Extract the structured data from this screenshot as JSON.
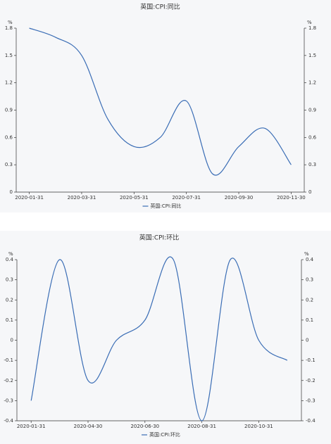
{
  "chart_data": [
    {
      "type": "line",
      "title": "英国:CPI:同比",
      "y_unit": "%",
      "categories": [
        "2020-01-31",
        null,
        "2020-03-31",
        null,
        "2020-05-31",
        null,
        "2020-07-31",
        null,
        "2020-09-30",
        null,
        "2020-11-30"
      ],
      "series": [
        {
          "name": "英国:CPI:同比",
          "color": "#3a6db5",
          "values": [
            1.8,
            1.7,
            1.5,
            0.8,
            0.5,
            0.6,
            1.0,
            0.2,
            0.5,
            0.7,
            0.3
          ]
        }
      ],
      "ylim": [
        0,
        1.8
      ],
      "yticks": [
        0,
        0.3,
        0.6,
        0.9,
        1.2,
        1.5,
        1.8
      ],
      "smooth": true
    },
    {
      "type": "line",
      "title": "英国:CPI:环比",
      "y_unit": "%",
      "categories": [
        "2020-01-31",
        null,
        "2020-04-30",
        null,
        "2020-06-30",
        null,
        "2020-08-31",
        null,
        "2020-10-31",
        null
      ],
      "series": [
        {
          "name": "英国:CPI:环比",
          "color": "#3a6db5",
          "values": [
            -0.3,
            0.4,
            -0.2,
            0,
            0.1,
            0.4,
            -0.4,
            0.4,
            0,
            -0.1
          ]
        }
      ],
      "ylim": [
        -0.4,
        0.4
      ],
      "yticks": [
        -0.4,
        -0.3,
        -0.2,
        -0.1,
        0,
        0.1,
        0.2,
        0.3,
        0.4
      ],
      "smooth": true
    }
  ]
}
